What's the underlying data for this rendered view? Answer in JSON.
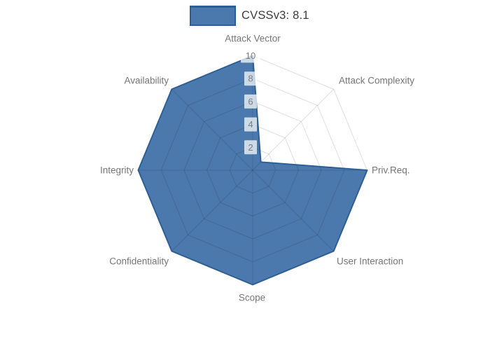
{
  "legend": {
    "label": "CVSSv3: 8.1"
  },
  "colors": {
    "background": "#ffffff",
    "fill": "#4b79ad",
    "stroke": "#2e5f94",
    "grid": "rgba(0,0,0,0.13)",
    "tick_text": "#7d7d7d",
    "tick_backdrop": "rgba(255,255,255,0.72)",
    "label_text": "#767676",
    "legend_text": "#3c3c3c"
  },
  "chart_data": {
    "type": "radar",
    "title": "CVSSv3: 8.1",
    "categories": [
      "Attack Vector",
      "Attack Complexity",
      "Priv.Req.",
      "User Interaction",
      "Scope",
      "Confidentiality",
      "Integrity",
      "Availability"
    ],
    "series": [
      {
        "name": "CVSSv3: 8.1",
        "values": [
          10,
          1,
          10,
          10,
          10,
          10,
          10,
          10
        ]
      }
    ],
    "rlim": [
      0,
      10
    ],
    "ticks": [
      2,
      4,
      6,
      8,
      10
    ],
    "grid": true,
    "grid_shape": "polygon",
    "start_axis": "top",
    "direction": "clockwise",
    "legend_position": "top"
  }
}
